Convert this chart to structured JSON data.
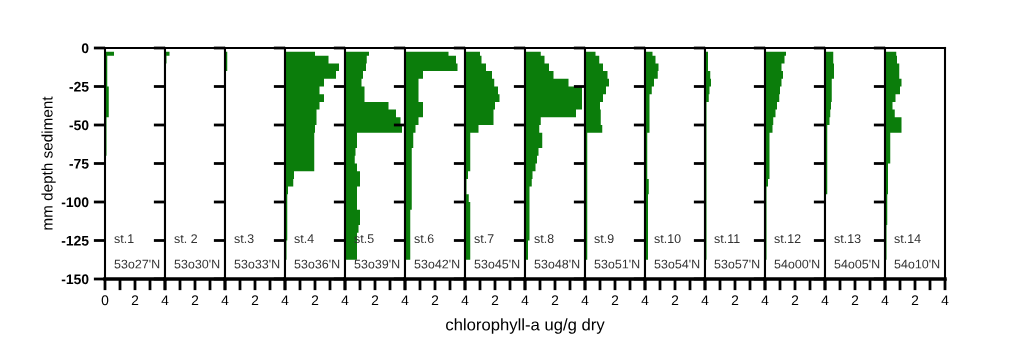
{
  "chart_data": [
    {
      "type": "area",
      "orientation": "horizontal",
      "ylabel": "mm depth sediment",
      "annotations": [
        "st.1",
        "53o27'N"
      ],
      "color": "#0b7d0b",
      "x": [
        -2.5,
        -7.5,
        -12.5,
        -17.5,
        -22.5,
        -27.5,
        -32.5,
        -37.5,
        -42.5,
        -47.5,
        -52.5,
        -57.5,
        -62.5,
        -67.5,
        -72.5,
        -77.5,
        -82.5,
        -87.5,
        -92.5,
        -97.5,
        -102.5,
        -107.5,
        -112.5,
        -117.5,
        -122.5,
        -127.5,
        -132.5,
        -137.5
      ],
      "values": [
        0.6,
        0.15,
        0.15,
        0.15,
        0.15,
        0.25,
        0.25,
        0.25,
        0.25,
        0.1,
        0.1,
        0.1,
        0.1,
        0.1,
        0.05,
        0.05,
        0.05,
        0.05,
        0.05,
        0.05,
        0.05,
        0.05,
        0.05,
        0.05,
        0.05,
        0.05,
        0.05,
        0.05
      ],
      "xlim": [
        0,
        4
      ],
      "xticks": [
        0,
        {
          "value": 1,
          "label": null
        },
        2,
        {
          "value": 3,
          "label": null
        },
        4
      ],
      "ylim": [
        -150,
        0
      ],
      "yticks": [
        0,
        -25,
        -50,
        -75,
        -100,
        -125,
        -150
      ]
    },
    {
      "type": "area",
      "orientation": "horizontal",
      "annotations": [
        "st. 2",
        "53o30'N"
      ],
      "color": "#0b7d0b",
      "x": [
        -2.5,
        -7.5,
        -12.5,
        -17.5,
        -22.5,
        -27.5,
        -32.5,
        -37.5,
        -42.5,
        -47.5,
        -52.5,
        -57.5,
        -62.5,
        -67.5,
        -72.5,
        -77.5,
        -82.5,
        -87.5,
        -92.5,
        -97.5,
        -102.5,
        -107.5,
        -112.5,
        -117.5,
        -122.5,
        -127.5,
        -132.5,
        -137.5
      ],
      "values": [
        0.3,
        0.1,
        0.02,
        0.02,
        0.02,
        0.02,
        0.02,
        0.02,
        0.02,
        0.02,
        0.02,
        0.02,
        0.02,
        0.02,
        0.02,
        0.02,
        0.02,
        0.02,
        0.02,
        0.02,
        0.02,
        0.02,
        0.02,
        0.02,
        0.02,
        0.02,
        0.02,
        0.02
      ],
      "xlim": [
        0,
        4
      ],
      "xticks": [
        {
          "value": 0,
          "label": null
        },
        {
          "value": 1,
          "label": null
        },
        2,
        {
          "value": 3,
          "label": null
        },
        4
      ],
      "ylim": [
        -150,
        0
      ],
      "yticks": [
        0,
        -25,
        -50,
        -75,
        -100,
        -125,
        -150
      ],
      "tick_labels": "x"
    },
    {
      "type": "area",
      "orientation": "horizontal",
      "annotations": [
        "st.3",
        "53o33'N"
      ],
      "color": "#0b7d0b",
      "x": [
        -2.5,
        -7.5,
        -12.5,
        -17.5,
        -22.5,
        -27.5,
        -32.5,
        -37.5,
        -42.5,
        -47.5,
        -52.5,
        -57.5,
        -62.5,
        -67.5,
        -72.5,
        -77.5,
        -82.5,
        -87.5,
        -92.5,
        -97.5,
        -102.5,
        -107.5,
        -112.5,
        -117.5,
        -122.5,
        -127.5,
        -132.5,
        -137.5
      ],
      "values": [
        0.15,
        0.15,
        0.15,
        0.02,
        0.02,
        0.02,
        0.02,
        0.02,
        0.02,
        0.02,
        0.02,
        0.02,
        0.02,
        0.02,
        0.02,
        0.02,
        0.02,
        0.02,
        0.02,
        0.02,
        0.02,
        0.02,
        0.02,
        0.02,
        0.02,
        0.02,
        0.02,
        0.02
      ],
      "xlim": [
        0,
        4
      ],
      "xticks": [
        {
          "value": 0,
          "label": null
        },
        {
          "value": 1,
          "label": null
        },
        2,
        {
          "value": 3,
          "label": null
        },
        4
      ],
      "ylim": [
        -150,
        0
      ],
      "yticks": [
        0,
        -25,
        -50,
        -75,
        -100,
        -125,
        -150
      ],
      "tick_labels": "x"
    },
    {
      "type": "area",
      "orientation": "horizontal",
      "annotations": [
        "st.4",
        "53o36'N"
      ],
      "color": "#0b7d0b",
      "x": [
        -2.5,
        -7.5,
        -12.5,
        -17.5,
        -22.5,
        -27.5,
        -32.5,
        -37.5,
        -42.5,
        -47.5,
        -52.5,
        -57.5,
        -62.5,
        -67.5,
        -72.5,
        -77.5,
        -82.5,
        -87.5,
        -92.5,
        -97.5,
        -102.5,
        -107.5,
        -112.5,
        -117.5,
        -122.5,
        -127.5,
        -132.5,
        -137.5
      ],
      "values": [
        2.0,
        2.9,
        3.6,
        3.4,
        2.6,
        2.3,
        2.6,
        2.3,
        2.1,
        2.1,
        2.0,
        1.95,
        1.95,
        1.95,
        1.95,
        1.95,
        0.6,
        0.55,
        0.2,
        0.15,
        0.15,
        0.15,
        0.15,
        0.15,
        0.15,
        0.1,
        0.1,
        0.1
      ],
      "xlim": [
        0,
        4
      ],
      "xticks": [
        {
          "value": 0,
          "label": null
        },
        {
          "value": 1,
          "label": null
        },
        2,
        {
          "value": 3,
          "label": null
        },
        4
      ],
      "ylim": [
        -150,
        0
      ],
      "yticks": [
        0,
        -25,
        -50,
        -75,
        -100,
        -125,
        -150
      ],
      "tick_labels": "x"
    },
    {
      "type": "area",
      "orientation": "horizontal",
      "annotations": [
        "st.5",
        "53o39'N"
      ],
      "color": "#0b7d0b",
      "x": [
        -2.5,
        -7.5,
        -12.5,
        -17.5,
        -22.5,
        -27.5,
        -32.5,
        -37.5,
        -42.5,
        -47.5,
        -52.5,
        -57.5,
        -62.5,
        -67.5,
        -72.5,
        -77.5,
        -82.5,
        -87.5,
        -92.5,
        -97.5,
        -102.5,
        -107.5,
        -112.5,
        -117.5,
        -122.5,
        -127.5,
        -132.5,
        -137.5
      ],
      "values": [
        1.6,
        1.45,
        1.4,
        1.2,
        1.1,
        1.3,
        1.3,
        2.9,
        3.4,
        3.7,
        3.8,
        0.8,
        0.8,
        0.7,
        0.65,
        0.8,
        1.0,
        1.0,
        0.8,
        0.8,
        0.8,
        1.0,
        1.0,
        0.9,
        0.8,
        0.8,
        0.8,
        0.8
      ],
      "xlim": [
        0,
        4
      ],
      "xticks": [
        {
          "value": 0,
          "label": null
        },
        {
          "value": 1,
          "label": null
        },
        2,
        {
          "value": 3,
          "label": null
        },
        4
      ],
      "ylim": [
        -150,
        0
      ],
      "yticks": [
        0,
        -25,
        -50,
        -75,
        -100,
        -125,
        -150
      ],
      "tick_labels": "x"
    },
    {
      "type": "area",
      "orientation": "horizontal",
      "annotations": [
        "st.6",
        "53o42'N"
      ],
      "color": "#0b7d0b",
      "x": [
        -2.5,
        -7.5,
        -12.5,
        -17.5,
        -22.5,
        -27.5,
        -32.5,
        -37.5,
        -42.5,
        -47.5,
        -52.5,
        -57.5,
        -62.5,
        -67.5,
        -72.5,
        -77.5,
        -82.5,
        -87.5,
        -92.5,
        -97.5,
        -102.5,
        -107.5,
        -112.5,
        -117.5,
        -122.5,
        -127.5,
        -132.5,
        -137.5
      ],
      "values": [
        2.9,
        3.4,
        3.5,
        1.2,
        0.9,
        0.9,
        0.9,
        1.2,
        1.2,
        0.9,
        0.7,
        0.55,
        0.55,
        0.45,
        0.45,
        0.45,
        0.45,
        0.45,
        0.45,
        0.45,
        0.45,
        0.35,
        0.35,
        0.35,
        0.35,
        0.35,
        0.35,
        0.35
      ],
      "xlim": [
        0,
        4
      ],
      "xticks": [
        {
          "value": 0,
          "label": null
        },
        {
          "value": 1,
          "label": null
        },
        2,
        {
          "value": 3,
          "label": null
        },
        4
      ],
      "ylim": [
        -150,
        0
      ],
      "yticks": [
        0,
        -25,
        -50,
        -75,
        -100,
        -125,
        -150
      ],
      "tick_labels": "x"
    },
    {
      "type": "area",
      "orientation": "horizontal",
      "annotations": [
        "st.7",
        "53o45'N"
      ],
      "color": "#0b7d0b",
      "x": [
        -2.5,
        -7.5,
        -12.5,
        -17.5,
        -22.5,
        -27.5,
        -32.5,
        -37.5,
        -42.5,
        -47.5,
        -52.5,
        -57.5,
        -62.5,
        -67.5,
        -72.5,
        -77.5,
        -82.5,
        -87.5,
        -92.5,
        -97.5,
        -102.5,
        -107.5,
        -112.5,
        -117.5,
        -122.5,
        -127.5,
        -132.5,
        -137.5
      ],
      "values": [
        1.0,
        1.1,
        1.4,
        1.8,
        1.95,
        2.2,
        2.3,
        2.0,
        1.9,
        1.9,
        0.9,
        0.35,
        0.35,
        0.35,
        0.35,
        0.35,
        0.2,
        0.1,
        0.1,
        0.25,
        0.35,
        0.35,
        0.35,
        0.35,
        0.35,
        0.35,
        0.35,
        0.35
      ],
      "xlim": [
        0,
        4
      ],
      "xticks": [
        {
          "value": 0,
          "label": null
        },
        {
          "value": 1,
          "label": null
        },
        2,
        {
          "value": 3,
          "label": null
        },
        4
      ],
      "ylim": [
        -150,
        0
      ],
      "yticks": [
        0,
        -25,
        -50,
        -75,
        -100,
        -125,
        -150
      ],
      "tick_labels": "x"
    },
    {
      "type": "area",
      "orientation": "horizontal",
      "xlabel": "chlorophyll-a ug/g dry",
      "annotations": [
        "st.8",
        "53o48'N"
      ],
      "color": "#0b7d0b",
      "x": [
        -2.5,
        -7.5,
        -12.5,
        -17.5,
        -22.5,
        -27.5,
        -32.5,
        -37.5,
        -42.5,
        -47.5,
        -52.5,
        -57.5,
        -62.5,
        -67.5,
        -72.5,
        -77.5,
        -82.5,
        -87.5,
        -92.5,
        -97.5,
        -102.5,
        -107.5,
        -112.5,
        -117.5,
        -122.5,
        -127.5,
        -132.5,
        -137.5
      ],
      "values": [
        1.05,
        1.3,
        1.6,
        1.9,
        2.9,
        3.8,
        3.8,
        3.8,
        3.4,
        1.05,
        0.95,
        1.15,
        1.15,
        0.9,
        0.8,
        0.7,
        0.5,
        0.45,
        0.3,
        0.3,
        0.3,
        0.3,
        0.3,
        0.3,
        0.3,
        0.2,
        0.2,
        0.2
      ],
      "xlim": [
        0,
        4
      ],
      "xticks": [
        {
          "value": 0,
          "label": null
        },
        {
          "value": 1,
          "label": null
        },
        2,
        {
          "value": 3,
          "label": null
        },
        4
      ],
      "ylim": [
        -150,
        0
      ],
      "yticks": [
        0,
        -25,
        -50,
        -75,
        -100,
        -125,
        -150
      ],
      "tick_labels": "x"
    },
    {
      "type": "area",
      "orientation": "horizontal",
      "annotations": [
        "st.9",
        "53o51'N"
      ],
      "color": "#0b7d0b",
      "x": [
        -2.5,
        -7.5,
        -12.5,
        -17.5,
        -22.5,
        -27.5,
        -32.5,
        -37.5,
        -42.5,
        -47.5,
        -52.5,
        -57.5,
        -62.5,
        -67.5,
        -72.5,
        -77.5,
        -82.5,
        -87.5,
        -92.5,
        -97.5,
        -102.5,
        -107.5,
        -112.5,
        -117.5,
        -122.5,
        -127.5,
        -132.5,
        -137.5
      ],
      "values": [
        0.7,
        0.95,
        1.2,
        1.5,
        1.6,
        1.4,
        1.2,
        1.0,
        1.05,
        1.05,
        1.15,
        0.15,
        0.15,
        0.15,
        0.15,
        0.15,
        0.15,
        0.15,
        0.15,
        0.15,
        0.15,
        0.15,
        0.15,
        0.15,
        0.15,
        0.15,
        0.15,
        0.15
      ],
      "xlim": [
        0,
        4
      ],
      "xticks": [
        {
          "value": 0,
          "label": null
        },
        {
          "value": 1,
          "label": null
        },
        2,
        {
          "value": 3,
          "label": null
        },
        4
      ],
      "ylim": [
        -150,
        0
      ],
      "yticks": [
        0,
        -25,
        -50,
        -75,
        -100,
        -125,
        -150
      ],
      "tick_labels": "x"
    },
    {
      "type": "area",
      "orientation": "horizontal",
      "annotations": [
        "st.10",
        "53o54'N"
      ],
      "color": "#0b7d0b",
      "x": [
        -2.5,
        -7.5,
        -12.5,
        -17.5,
        -22.5,
        -27.5,
        -32.5,
        -37.5,
        -42.5,
        -47.5,
        -52.5,
        -57.5,
        -62.5,
        -67.5,
        -72.5,
        -77.5,
        -82.5,
        -87.5,
        -92.5,
        -97.5,
        -102.5,
        -107.5,
        -112.5,
        -117.5,
        -122.5,
        -127.5,
        -132.5,
        -137.5
      ],
      "values": [
        0.5,
        0.7,
        0.9,
        0.85,
        0.6,
        0.45,
        0.3,
        0.3,
        0.3,
        0.3,
        0.3,
        0.15,
        0.15,
        0.15,
        0.15,
        0.15,
        0.15,
        0.25,
        0.25,
        0.2,
        0.2,
        0.2,
        0.2,
        0.2,
        0.2,
        0.2,
        0.2,
        0.2
      ],
      "xlim": [
        0,
        4
      ],
      "xticks": [
        {
          "value": 0,
          "label": null
        },
        {
          "value": 1,
          "label": null
        },
        2,
        {
          "value": 3,
          "label": null
        },
        4
      ],
      "ylim": [
        -150,
        0
      ],
      "yticks": [
        0,
        -25,
        -50,
        -75,
        -100,
        -125,
        -150
      ],
      "tick_labels": "x"
    },
    {
      "type": "area",
      "orientation": "horizontal",
      "annotations": [
        "st.11",
        "53o57'N"
      ],
      "color": "#0b7d0b",
      "x": [
        -2.5,
        -7.5,
        -12.5,
        -17.5,
        -22.5,
        -27.5,
        -32.5,
        -37.5,
        -42.5,
        -47.5,
        -52.5,
        -57.5,
        -62.5,
        -67.5,
        -72.5,
        -77.5,
        -82.5,
        -87.5,
        -92.5,
        -97.5,
        -102.5,
        -107.5,
        -112.5,
        -117.5,
        -122.5,
        -127.5,
        -132.5,
        -137.5
      ],
      "values": [
        0.2,
        0.2,
        0.2,
        0.35,
        0.4,
        0.3,
        0.25,
        0.1,
        0.1,
        0.1,
        0.1,
        0.1,
        0.1,
        0.1,
        0.1,
        0.1,
        0.1,
        0.1,
        0.1,
        0.1,
        0.1,
        0.1,
        0.1,
        0.1,
        0.1,
        0.1,
        0.1,
        0.1
      ],
      "xlim": [
        0,
        4
      ],
      "xticks": [
        {
          "value": 0,
          "label": null
        },
        {
          "value": 1,
          "label": null
        },
        2,
        {
          "value": 3,
          "label": null
        },
        4
      ],
      "ylim": [
        -150,
        0
      ],
      "yticks": [
        0,
        -25,
        -50,
        -75,
        -100,
        -125,
        -150
      ],
      "tick_labels": "x"
    },
    {
      "type": "area",
      "orientation": "horizontal",
      "annotations": [
        "st.12",
        "54o00'N"
      ],
      "color": "#0b7d0b",
      "x": [
        -2.5,
        -7.5,
        -12.5,
        -17.5,
        -22.5,
        -27.5,
        -32.5,
        -37.5,
        -42.5,
        -47.5,
        -52.5,
        -57.5,
        -62.5,
        -67.5,
        -72.5,
        -77.5,
        -82.5,
        -87.5,
        -92.5,
        -97.5,
        -102.5,
        -107.5,
        -112.5,
        -117.5,
        -122.5,
        -127.5,
        -132.5,
        -137.5
      ],
      "values": [
        1.4,
        1.3,
        1.1,
        1.2,
        1.1,
        1.0,
        0.95,
        0.8,
        0.7,
        0.55,
        0.5,
        0.3,
        0.3,
        0.3,
        0.3,
        0.3,
        0.3,
        0.2,
        0.1,
        0.1,
        0.1,
        0.1,
        0.1,
        0.1,
        0.1,
        0.1,
        0.1,
        0.1
      ],
      "xlim": [
        0,
        4
      ],
      "xticks": [
        {
          "value": 0,
          "label": null
        },
        {
          "value": 1,
          "label": null
        },
        2,
        {
          "value": 3,
          "label": null
        },
        4
      ],
      "ylim": [
        -150,
        0
      ],
      "yticks": [
        0,
        -25,
        -50,
        -75,
        -100,
        -125,
        -150
      ],
      "tick_labels": "x"
    },
    {
      "type": "area",
      "orientation": "horizontal",
      "annotations": [
        "st.13",
        "54o05'N"
      ],
      "color": "#0b7d0b",
      "x": [
        -2.5,
        -7.5,
        -12.5,
        -17.5,
        -22.5,
        -27.5,
        -32.5,
        -37.5,
        -42.5,
        -47.5,
        -52.5,
        -57.5,
        -62.5,
        -67.5,
        -72.5,
        -77.5,
        -82.5,
        -87.5,
        -92.5,
        -97.5,
        -102.5,
        -107.5,
        -112.5,
        -117.5,
        -122.5,
        -127.5,
        -132.5,
        -137.5
      ],
      "values": [
        0.55,
        0.55,
        0.6,
        0.6,
        0.45,
        0.45,
        0.45,
        0.4,
        0.35,
        0.3,
        0.15,
        0.15,
        0.15,
        0.15,
        0.15,
        0.15,
        0.15,
        0.15,
        0.15,
        0.05,
        0.05,
        0.05,
        0.05,
        0.05,
        0.05,
        0.05,
        0.05,
        0.05
      ],
      "xlim": [
        0,
        4
      ],
      "xticks": [
        {
          "value": 0,
          "label": null
        },
        {
          "value": 1,
          "label": null
        },
        2,
        {
          "value": 3,
          "label": null
        },
        4
      ],
      "ylim": [
        -150,
        0
      ],
      "yticks": [
        0,
        -25,
        -50,
        -75,
        -100,
        -125,
        -150
      ],
      "tick_labels": "x"
    },
    {
      "type": "area",
      "orientation": "horizontal",
      "annotations": [
        "st.14",
        "54o10'N"
      ],
      "color": "#0b7d0b",
      "x": [
        -2.5,
        -7.5,
        -12.5,
        -17.5,
        -22.5,
        -27.5,
        -32.5,
        -37.5,
        -42.5,
        -47.5,
        -52.5,
        -57.5,
        -62.5,
        -67.5,
        -72.5,
        -77.5,
        -82.5,
        -87.5,
        -92.5,
        -97.5,
        -102.5,
        -107.5,
        -112.5,
        -117.5,
        -122.5,
        -127.5,
        -132.5,
        -137.5
      ],
      "values": [
        0.75,
        0.8,
        0.95,
        0.95,
        1.1,
        1.0,
        0.7,
        0.5,
        0.65,
        1.1,
        1.1,
        0.35,
        0.35,
        0.35,
        0.35,
        0.2,
        0.2,
        0.2,
        0.2,
        0.15,
        0.15,
        0.15,
        0.15,
        0.1,
        0.1,
        0.1,
        0.1,
        0.1
      ],
      "xlim": [
        0,
        4
      ],
      "xticks": [
        {
          "value": 0,
          "label": null
        },
        {
          "value": 1,
          "label": null
        },
        2,
        {
          "value": 3,
          "label": null
        },
        4
      ],
      "ylim": [
        -150,
        0
      ],
      "yticks": [
        0,
        -25,
        -50,
        -75,
        -100,
        -125,
        -150
      ],
      "tick_labels": "x"
    }
  ]
}
